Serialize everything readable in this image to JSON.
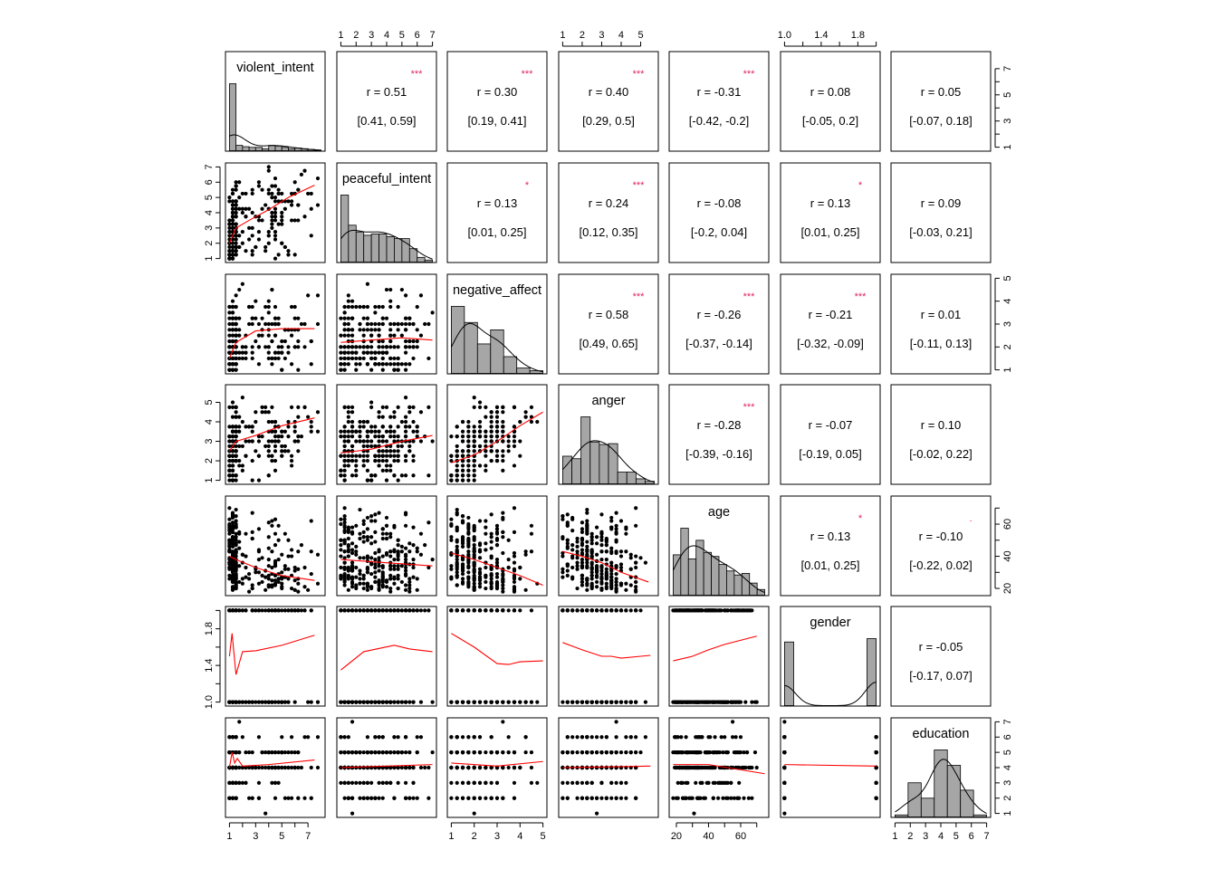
{
  "chart_data": {
    "type": "scatter-matrix",
    "title": "",
    "colors": {
      "points": "#000000",
      "smooth": "#ff0000",
      "stars": "#e0245e",
      "hist": "#a6a6a6"
    },
    "variables": [
      {
        "name": "violent_intent",
        "range": [
          1,
          8
        ],
        "step": 0.25,
        "ticks": [
          1,
          2,
          3,
          4,
          5,
          6,
          7
        ],
        "tick_labels": [
          "1",
          "3",
          "5",
          "7"
        ],
        "labeled_ticks": [
          1,
          3,
          5,
          7
        ],
        "hist": [
          1,
          0.08,
          0.06,
          0.05,
          0.05,
          0.03,
          0.08,
          0.07,
          0.05,
          0.03,
          0.04,
          0.03,
          0.02,
          0.01
        ]
      },
      {
        "name": "peaceful_intent",
        "range": [
          1,
          7
        ],
        "step": 0.25,
        "ticks": [
          1,
          2,
          3,
          4,
          5,
          6,
          7
        ],
        "tick_labels": [
          "1",
          "2",
          "3",
          "4",
          "5",
          "6",
          "7"
        ],
        "labeled_ticks": [
          1,
          2,
          3,
          4,
          5,
          6,
          7
        ],
        "hist": [
          1,
          0.55,
          0.45,
          0.4,
          0.42,
          0.42,
          0.38,
          0.35,
          0.35,
          0.2,
          0.07,
          0.03
        ]
      },
      {
        "name": "negative_affect",
        "range": [
          1,
          5
        ],
        "step": 0.25,
        "ticks": [
          1,
          2,
          3,
          4,
          5
        ],
        "tick_labels": [
          "1",
          "2",
          "3",
          "4",
          "5"
        ],
        "labeled_ticks": [
          1,
          2,
          3,
          4,
          5
        ],
        "hist": [
          1,
          0.76,
          0.44,
          0.65,
          0.25,
          0.08,
          0.04
        ]
      },
      {
        "name": "anger",
        "range": [
          1,
          5.7
        ],
        "step": 0.25,
        "ticks": [
          1,
          2,
          3,
          4,
          5
        ],
        "tick_labels": [
          "1",
          "2",
          "3",
          "4",
          "5"
        ],
        "labeled_ticks": [
          1,
          2,
          3,
          4,
          5
        ],
        "hist": [
          0.33,
          0.3,
          0.8,
          0.5,
          0.47,
          0.48,
          0.14,
          0.14,
          0.06,
          0.03
        ]
      },
      {
        "name": "age",
        "range": [
          18,
          75
        ],
        "step": 1,
        "ticks": [
          20,
          30,
          40,
          50,
          60,
          70
        ],
        "tick_labels": [
          "20",
          "40",
          "60"
        ],
        "labeled_ticks": [
          20,
          40,
          60
        ],
        "hist": [
          0.5,
          0.83,
          0.45,
          0.68,
          0.53,
          0.48,
          0.38,
          0.3,
          0.25,
          0.27,
          0.15,
          0.07
        ]
      },
      {
        "name": "gender",
        "range": [
          1,
          2
        ],
        "step": 1,
        "ticks": [
          1.0,
          1.2,
          1.4,
          1.6,
          1.8,
          2.0
        ],
        "tick_labels": [
          "1.0",
          "1.4",
          "1.8"
        ],
        "labeled_ticks": [
          1.0,
          1.4,
          1.8
        ],
        "hist": [
          0.95,
          0,
          0,
          0,
          0,
          0,
          0,
          0,
          0,
          1
        ]
      },
      {
        "name": "education",
        "range": [
          1,
          7
        ],
        "step": 1,
        "ticks": [
          1,
          2,
          3,
          4,
          5,
          6,
          7
        ],
        "tick_labels": [
          "1",
          "2",
          "3",
          "4",
          "5",
          "6",
          "7"
        ],
        "labeled_ticks": [
          1,
          2,
          3,
          4,
          5,
          6,
          7
        ],
        "hist": [
          0.03,
          0.51,
          0.28,
          1,
          0.77,
          0.4,
          0.03
        ]
      }
    ],
    "correlations": [
      {
        "row": 0,
        "col": 1,
        "r": "0.51",
        "ci": "[0.41, 0.59]",
        "stars": "***"
      },
      {
        "row": 0,
        "col": 2,
        "r": "0.30",
        "ci": "[0.19, 0.41]",
        "stars": "***"
      },
      {
        "row": 0,
        "col": 3,
        "r": "0.40",
        "ci": "[0.29, 0.5]",
        "stars": "***"
      },
      {
        "row": 0,
        "col": 4,
        "r": "-0.31",
        "ci": "[-0.42, -0.2]",
        "stars": "***"
      },
      {
        "row": 0,
        "col": 5,
        "r": "0.08",
        "ci": "[-0.05, 0.2]",
        "stars": ""
      },
      {
        "row": 0,
        "col": 6,
        "r": "0.05",
        "ci": "[-0.07, 0.18]",
        "stars": ""
      },
      {
        "row": 1,
        "col": 2,
        "r": "0.13",
        "ci": "[0.01, 0.25]",
        "stars": "*"
      },
      {
        "row": 1,
        "col": 3,
        "r": "0.24",
        "ci": "[0.12, 0.35]",
        "stars": "***"
      },
      {
        "row": 1,
        "col": 4,
        "r": "-0.08",
        "ci": "[-0.2, 0.04]",
        "stars": ""
      },
      {
        "row": 1,
        "col": 5,
        "r": "0.13",
        "ci": "[0.01, 0.25]",
        "stars": "*"
      },
      {
        "row": 1,
        "col": 6,
        "r": "0.09",
        "ci": "[-0.03, 0.21]",
        "stars": ""
      },
      {
        "row": 2,
        "col": 3,
        "r": "0.58",
        "ci": "[0.49, 0.65]",
        "stars": "***"
      },
      {
        "row": 2,
        "col": 4,
        "r": "-0.26",
        "ci": "[-0.37, -0.14]",
        "stars": "***"
      },
      {
        "row": 2,
        "col": 5,
        "r": "-0.21",
        "ci": "[-0.32, -0.09]",
        "stars": "***"
      },
      {
        "row": 2,
        "col": 6,
        "r": "0.01",
        "ci": "[-0.11, 0.13]",
        "stars": ""
      },
      {
        "row": 3,
        "col": 4,
        "r": "-0.28",
        "ci": "[-0.39, -0.16]",
        "stars": "***"
      },
      {
        "row": 3,
        "col": 5,
        "r": "-0.07",
        "ci": "[-0.19, 0.05]",
        "stars": ""
      },
      {
        "row": 3,
        "col": 6,
        "r": "0.10",
        "ci": "[-0.02, 0.22]",
        "stars": ""
      },
      {
        "row": 4,
        "col": 5,
        "r": "0.13",
        "ci": "[0.01, 0.25]",
        "stars": "*"
      },
      {
        "row": 4,
        "col": 6,
        "r": "-0.10",
        "ci": "[-0.22, 0.02]",
        "stars": "."
      },
      {
        "row": 5,
        "col": 6,
        "r": "-0.05",
        "ci": "[-0.17, 0.07]",
        "stars": ""
      }
    ],
    "smooth_lines": [
      {
        "row": 1,
        "col": 0,
        "points": [
          [
            1,
            2
          ],
          [
            1.5,
            3
          ],
          [
            2.5,
            3.5
          ],
          [
            4,
            4.2
          ],
          [
            5.5,
            5
          ],
          [
            7.5,
            5.8
          ]
        ]
      },
      {
        "row": 2,
        "col": 0,
        "points": [
          [
            1,
            1.5
          ],
          [
            1.5,
            2.2
          ],
          [
            3,
            2.7
          ],
          [
            5,
            2.8
          ],
          [
            7.5,
            2.8
          ]
        ]
      },
      {
        "row": 2,
        "col": 1,
        "points": [
          [
            1,
            2.2
          ],
          [
            3,
            2.3
          ],
          [
            5,
            2.4
          ],
          [
            7,
            2.3
          ]
        ]
      },
      {
        "row": 3,
        "col": 0,
        "points": [
          [
            1,
            2.5
          ],
          [
            1.5,
            3
          ],
          [
            3,
            3.3
          ],
          [
            5,
            3.8
          ],
          [
            7.5,
            4.2
          ]
        ]
      },
      {
        "row": 3,
        "col": 1,
        "points": [
          [
            1,
            2.4
          ],
          [
            3,
            2.6
          ],
          [
            5,
            3
          ],
          [
            7,
            3.3
          ]
        ]
      },
      {
        "row": 3,
        "col": 2,
        "points": [
          [
            1,
            1.9
          ],
          [
            2,
            2.3
          ],
          [
            3,
            3
          ],
          [
            4,
            3.8
          ],
          [
            5,
            4.5
          ]
        ]
      },
      {
        "row": 4,
        "col": 0,
        "points": [
          [
            1,
            40
          ],
          [
            1.5,
            38
          ],
          [
            3,
            33
          ],
          [
            5,
            28
          ],
          [
            7.5,
            25
          ]
        ]
      },
      {
        "row": 4,
        "col": 1,
        "points": [
          [
            1,
            38
          ],
          [
            4,
            36
          ],
          [
            7,
            34
          ]
        ]
      },
      {
        "row": 4,
        "col": 2,
        "points": [
          [
            1,
            42
          ],
          [
            2,
            38
          ],
          [
            3,
            33
          ],
          [
            4,
            28
          ],
          [
            5,
            22
          ]
        ]
      },
      {
        "row": 4,
        "col": 3,
        "points": [
          [
            1,
            43
          ],
          [
            2,
            40
          ],
          [
            3,
            36
          ],
          [
            4,
            30
          ],
          [
            5.4,
            24
          ]
        ]
      },
      {
        "row": 5,
        "col": 0,
        "points": [
          [
            1,
            1.5
          ],
          [
            1.2,
            1.75
          ],
          [
            1.5,
            1.3
          ],
          [
            2,
            1.55
          ],
          [
            3,
            1.56
          ],
          [
            5,
            1.62
          ],
          [
            7.5,
            1.73
          ]
        ]
      },
      {
        "row": 5,
        "col": 1,
        "points": [
          [
            1,
            1.35
          ],
          [
            2.5,
            1.55
          ],
          [
            4.5,
            1.62
          ],
          [
            5.5,
            1.58
          ],
          [
            7,
            1.55
          ]
        ]
      },
      {
        "row": 5,
        "col": 2,
        "points": [
          [
            1,
            1.75
          ],
          [
            2,
            1.6
          ],
          [
            3,
            1.42
          ],
          [
            3.5,
            1.41
          ],
          [
            4,
            1.44
          ],
          [
            5,
            1.45
          ]
        ]
      },
      {
        "row": 5,
        "col": 3,
        "points": [
          [
            1,
            1.65
          ],
          [
            2,
            1.57
          ],
          [
            3,
            1.5
          ],
          [
            3.5,
            1.5
          ],
          [
            4,
            1.48
          ],
          [
            5,
            1.5
          ],
          [
            5.5,
            1.51
          ]
        ]
      },
      {
        "row": 5,
        "col": 4,
        "points": [
          [
            18,
            1.45
          ],
          [
            30,
            1.5
          ],
          [
            40,
            1.57
          ],
          [
            50,
            1.63
          ],
          [
            70,
            1.72
          ]
        ]
      },
      {
        "row": 6,
        "col": 0,
        "points": [
          [
            1,
            4
          ],
          [
            1.2,
            5
          ],
          [
            1.4,
            4.3
          ],
          [
            1.6,
            4.6
          ],
          [
            2,
            4.1
          ],
          [
            4,
            4.2
          ],
          [
            7.5,
            4.5
          ]
        ]
      },
      {
        "row": 6,
        "col": 1,
        "points": [
          [
            1,
            4
          ],
          [
            7,
            4.2
          ]
        ]
      },
      {
        "row": 6,
        "col": 2,
        "points": [
          [
            1,
            4.3
          ],
          [
            3,
            4.1
          ],
          [
            5,
            4.4
          ]
        ]
      },
      {
        "row": 6,
        "col": 3,
        "points": [
          [
            1,
            4
          ],
          [
            5.5,
            4.1
          ]
        ]
      },
      {
        "row": 6,
        "col": 4,
        "points": [
          [
            18,
            4.2
          ],
          [
            40,
            4.2
          ],
          [
            75,
            3.6
          ]
        ]
      },
      {
        "row": 6,
        "col": 5,
        "points": [
          [
            1,
            4.2
          ],
          [
            2,
            4.1
          ]
        ]
      }
    ],
    "n_points": 280
  }
}
